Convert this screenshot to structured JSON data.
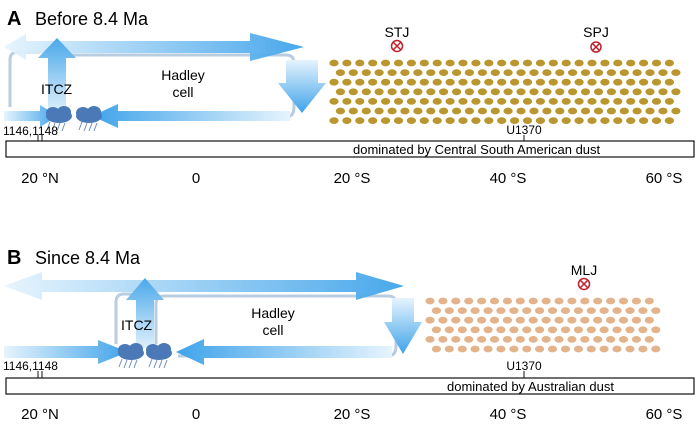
{
  "panels": [
    {
      "id": "A",
      "letter": "A",
      "title": "Before 8.4 Ma",
      "itcz_label": "ITCZ",
      "hadley_line1": "Hadley",
      "hadley_line2": "cell",
      "sites_label": "1146,1148",
      "core_label": "U1370",
      "bar_label": "dominated by Central South American dust",
      "jets": [
        {
          "label": "STJ"
        },
        {
          "label": "SPJ"
        }
      ],
      "dust_color": "#b9962e",
      "axis_ticks": [
        "20 °N",
        "0",
        "20 °S",
        "40 °S",
        "60 °S"
      ]
    },
    {
      "id": "B",
      "letter": "B",
      "title": "Since 8.4 Ma",
      "itcz_label": "ITCZ",
      "hadley_line1": "Hadley",
      "hadley_line2": "cell",
      "sites_label": "1146,1148",
      "core_label": "U1370",
      "bar_label": "dominated by Australian dust",
      "jets": [
        {
          "label": "MLJ"
        }
      ],
      "dust_color": "#e3b48c",
      "axis_ticks": [
        "20 °N",
        "0",
        "20 °S",
        "40 °S",
        "60 °S"
      ]
    }
  ],
  "colors": {
    "arrow_dark": "#4aa8ea",
    "arrow_light": "#d8eefb",
    "cell_outline": "#b5c8dc",
    "cloud": "#4b79b8",
    "jet_red": "#c0202a"
  }
}
